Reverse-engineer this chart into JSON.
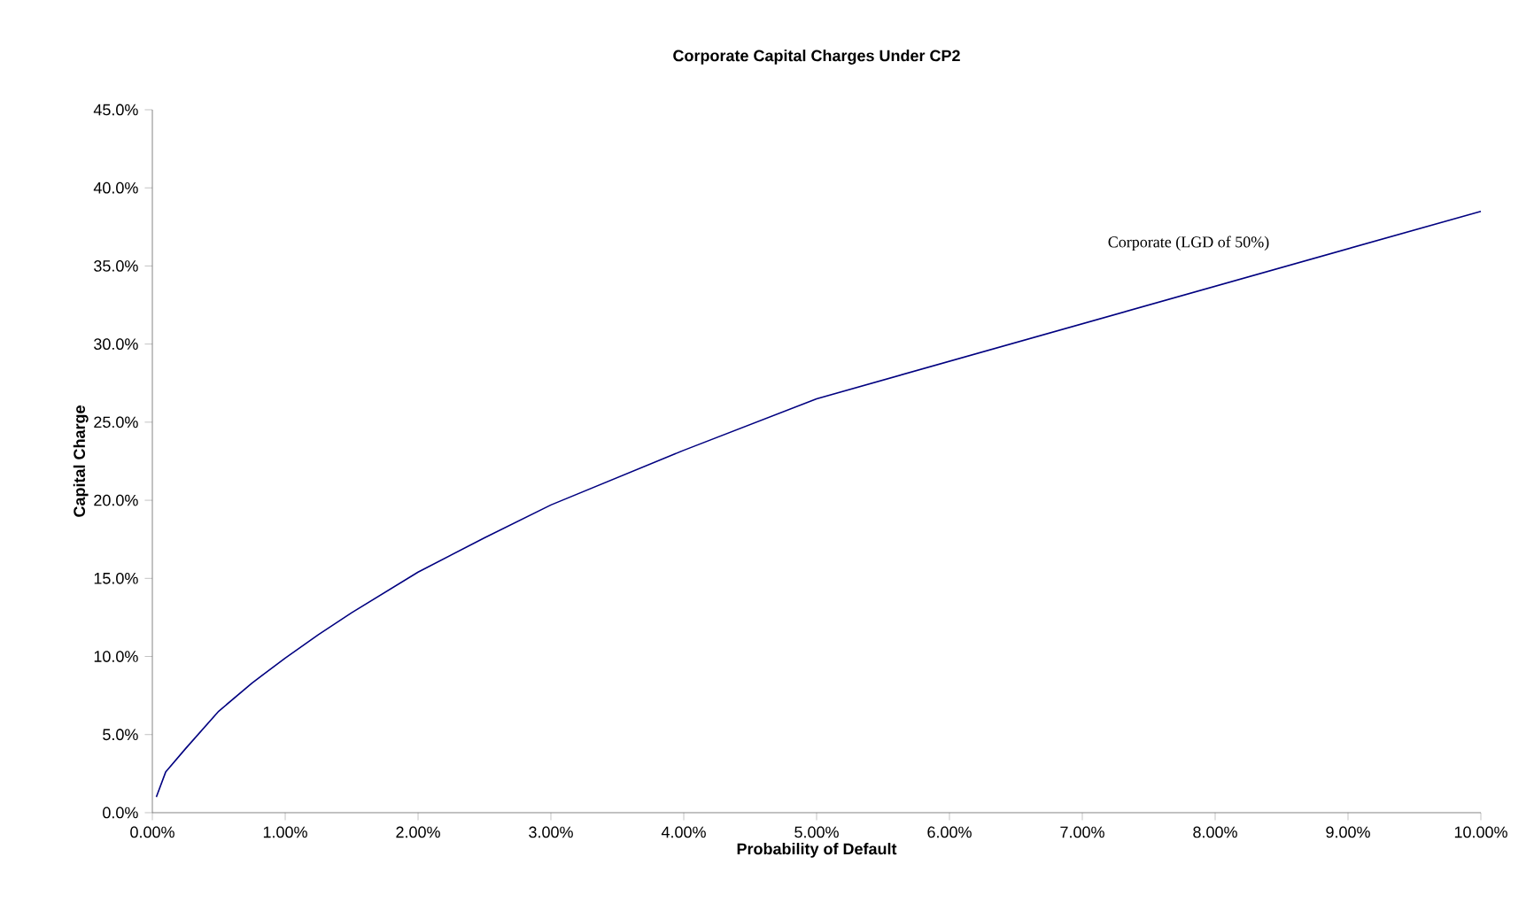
{
  "chart_data": {
    "type": "line",
    "title": "Corporate Capital Charges Under CP2",
    "xlabel": "Probability of Default",
    "ylabel": "Capital Charge",
    "x": [
      0.03,
      0.1,
      0.25,
      0.5,
      0.75,
      1.0,
      1.25,
      1.5,
      2.0,
      2.5,
      3.0,
      4.0,
      5.0,
      10.0
    ],
    "series": [
      {
        "color": "#000080",
        "values": [
          1.0,
          2.6,
          4.1,
          6.5,
          8.3,
          9.9,
          11.4,
          12.8,
          15.4,
          17.6,
          19.7,
          23.2,
          26.5,
          38.5
        ]
      }
    ],
    "annotations": [
      "Corporate (LGD of 50%)"
    ],
    "xlim": [
      0,
      10
    ],
    "ylim": [
      0,
      45
    ],
    "xticks": [
      {
        "value": 0,
        "label": "0.00%"
      },
      {
        "value": 1,
        "label": "1.00%"
      },
      {
        "value": 2,
        "label": "2.00%"
      },
      {
        "value": 3,
        "label": "3.00%"
      },
      {
        "value": 4,
        "label": "4.00%"
      },
      {
        "value": 5,
        "label": "5.00%"
      },
      {
        "value": 6,
        "label": "6.00%"
      },
      {
        "value": 7,
        "label": "7.00%"
      },
      {
        "value": 8,
        "label": "8.00%"
      },
      {
        "value": 9,
        "label": "9.00%"
      },
      {
        "value": 10,
        "label": "10.00%"
      }
    ],
    "yticks": [
      {
        "value": 0,
        "label": "0.0%"
      },
      {
        "value": 5,
        "label": "5.0%"
      },
      {
        "value": 10,
        "label": "10.0%"
      },
      {
        "value": 15,
        "label": "15.0%"
      },
      {
        "value": 20,
        "label": "20.0%"
      },
      {
        "value": 25,
        "label": "25.0%"
      },
      {
        "value": 30,
        "label": "30.0%"
      },
      {
        "value": 35,
        "label": "35.0%"
      },
      {
        "value": 40,
        "label": "40.0%"
      },
      {
        "value": 45,
        "label": "45.0%"
      }
    ],
    "grid": false,
    "marker": "none",
    "line_style": "solid"
  }
}
